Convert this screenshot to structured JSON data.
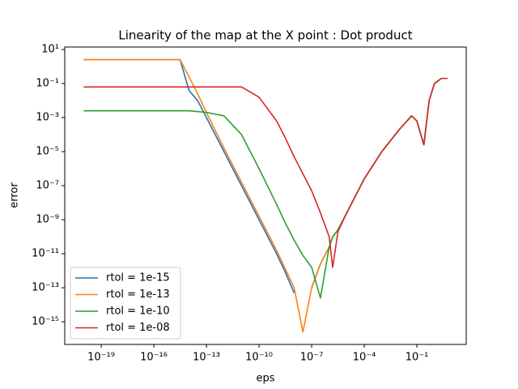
{
  "chart_data": {
    "type": "line",
    "title": "Linearity of the map at the X point : Dot product",
    "x_label": "eps",
    "y_label": "error",
    "xscale": "log",
    "yscale": "log",
    "x": [
      1e-20,
      1e-18,
      1e-16,
      1e-15,
      3.16e-15,
      1e-14,
      3.16e-14,
      1e-13,
      1e-12,
      1e-11,
      1e-10,
      1e-09,
      3.16e-09,
      1e-08,
      3.16e-08,
      1e-07,
      3.16e-07,
      1e-06,
      1.58e-06,
      3.16e-06,
      1e-05,
      0.0001,
      0.001,
      0.01,
      0.05,
      0.1,
      0.251,
      0.501,
      1,
      2.51,
      5.62
    ],
    "series": [
      {
        "name": "rtol = 1e-15",
        "color": "#1f77b4",
        "values": [
          2.51,
          2.51,
          2.51,
          2.51,
          2.51,
          0.0398,
          0.01,
          0.001,
          1e-05,
          1e-07,
          1e-09,
          1e-11,
          7.94e-13,
          5.01e-14,
          null,
          1e-13,
          2.51e-12,
          2.51e-11,
          1e-10,
          2.51e-10,
          2.51e-09,
          2.51e-07,
          1e-05,
          0.0002,
          0.00126,
          0.000631,
          2.51e-05,
          0.01,
          0.1,
          0.2,
          0.2
        ]
      },
      {
        "name": "rtol = 1e-13",
        "color": "#ff7f0e",
        "values": [
          2.51,
          2.51,
          2.51,
          2.51,
          2.51,
          0.251,
          0.0251,
          0.002,
          1.58e-05,
          1.58e-07,
          1.58e-09,
          1.58e-11,
          1.26e-12,
          1e-13,
          2.51e-16,
          1e-13,
          2.51e-12,
          2.51e-11,
          1e-10,
          2.51e-10,
          2.51e-09,
          2.51e-07,
          1e-05,
          0.0002,
          0.00126,
          0.000631,
          2.51e-05,
          0.01,
          0.1,
          0.2,
          0.2
        ]
      },
      {
        "name": "rtol = 1e-10",
        "color": "#2ca02c",
        "values": [
          0.00251,
          0.00251,
          0.00251,
          0.00251,
          0.00251,
          0.00251,
          0.00224,
          0.002,
          0.00126,
          0.0001,
          1e-06,
          7.94e-09,
          6.31e-10,
          6.31e-11,
          7.94e-12,
          1.58e-12,
          2.51e-14,
          2.51e-11,
          1e-10,
          2.51e-10,
          2.51e-09,
          2.51e-07,
          1e-05,
          0.0002,
          0.00126,
          0.000631,
          2.51e-05,
          0.01,
          0.1,
          0.2,
          0.2
        ]
      },
      {
        "name": "rtol = 1e-08",
        "color": "#d62728",
        "values": [
          0.0631,
          0.0631,
          0.0631,
          0.0631,
          0.0631,
          0.0631,
          0.0631,
          0.0631,
          0.0631,
          0.0631,
          0.0158,
          0.000631,
          6.31e-05,
          5.01e-06,
          5.01e-07,
          5.01e-08,
          2.51e-09,
          1e-10,
          1.58e-12,
          2e-10,
          2.51e-09,
          2.51e-07,
          1e-05,
          0.0002,
          0.00126,
          0.000631,
          2.51e-05,
          0.01,
          0.1,
          0.2,
          0.2
        ]
      }
    ],
    "xlim": [
      8.3e-22,
      65
    ],
    "ylim": [
      4.7e-17,
      14
    ],
    "xticks": [
      {
        "value": 1e-19,
        "label": "10⁻¹⁹"
      },
      {
        "value": 1e-16,
        "label": "10⁻¹⁶"
      },
      {
        "value": 1e-13,
        "label": "10⁻¹³"
      },
      {
        "value": 1e-10,
        "label": "10⁻¹⁰"
      },
      {
        "value": 1e-07,
        "label": "10⁻⁷"
      },
      {
        "value": 0.0001,
        "label": "10⁻⁴"
      },
      {
        "value": 0.1,
        "label": "10⁻¹"
      }
    ],
    "yticks": [
      {
        "value": 10,
        "label": "10¹"
      },
      {
        "value": 0.1,
        "label": "10⁻¹"
      },
      {
        "value": 0.001,
        "label": "10⁻³"
      },
      {
        "value": 1e-05,
        "label": "10⁻⁵"
      },
      {
        "value": 1e-07,
        "label": "10⁻⁷"
      },
      {
        "value": 1e-09,
        "label": "10⁻⁹"
      },
      {
        "value": 1e-11,
        "label": "10⁻¹¹"
      },
      {
        "value": 1e-13,
        "label": "10⁻¹³"
      },
      {
        "value": 1e-15,
        "label": "10⁻¹⁵"
      }
    ],
    "grid": false,
    "legend": "lower left"
  }
}
